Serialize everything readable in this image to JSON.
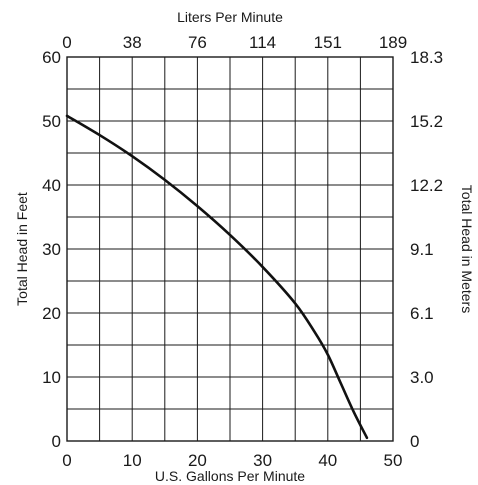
{
  "chart_data": {
    "type": "line",
    "title": "",
    "xlabel": "U.S. Gallons Per Minute",
    "ylabel": "Total Head in Feet",
    "x2label": "Liters Per Minute",
    "y2label": "Total Head in Meters",
    "xlim": [
      0,
      50
    ],
    "ylim": [
      0,
      60
    ],
    "x_ticks": [
      "0",
      "10",
      "20",
      "30",
      "40",
      "50"
    ],
    "y_ticks": [
      "0",
      "10",
      "20",
      "30",
      "40",
      "50",
      "60"
    ],
    "x2_ticks": [
      "0",
      "38",
      "76",
      "114",
      "151",
      "189"
    ],
    "y2_ticks": [
      "0",
      "3.0",
      "6.1",
      "9.1",
      "12.2",
      "15.2",
      "18.3"
    ],
    "grid": true,
    "series": [
      {
        "x": [
          0,
          5,
          10,
          15,
          20,
          25,
          30,
          35,
          38,
          40,
          42,
          44,
          46
        ],
        "y": [
          50.8,
          47.8,
          44.5,
          40.8,
          36.7,
          32.2,
          27.2,
          21.5,
          17.0,
          13.5,
          9.0,
          4.5,
          0.5
        ]
      }
    ]
  }
}
